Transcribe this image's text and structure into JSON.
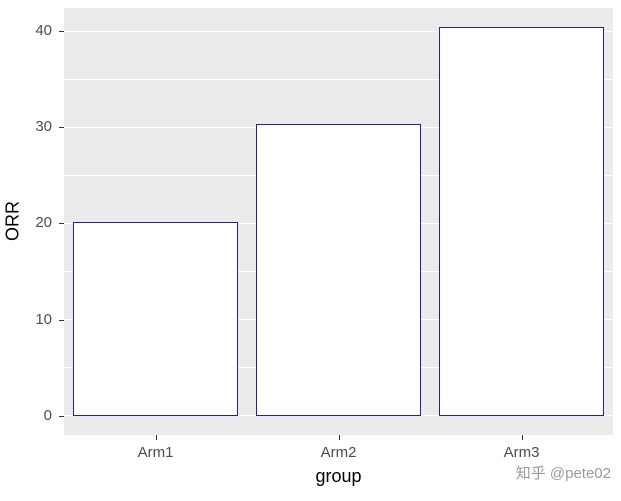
{
  "watermark": "知乎 @pete02",
  "chart_data": {
    "type": "bar",
    "title": "",
    "categories": [
      "Arm1",
      "Arm2",
      "Arm3"
    ],
    "values": [
      20.2,
      30.3,
      40.4
    ],
    "xlabel": "group",
    "ylabel": "ORR",
    "ylim": [
      -2.02,
      42.42
    ],
    "yticks_major": [
      0,
      10,
      20,
      30,
      40
    ],
    "yticks_minor": [
      5,
      15,
      25,
      35
    ],
    "legend": "none",
    "grid": "on",
    "bar_fill": "#FFFFFF",
    "bar_border": "#2020A8",
    "panel_bg": "#EBEBEB",
    "grid_color": "#FFFFFF",
    "bar_width_fraction": 0.9
  }
}
